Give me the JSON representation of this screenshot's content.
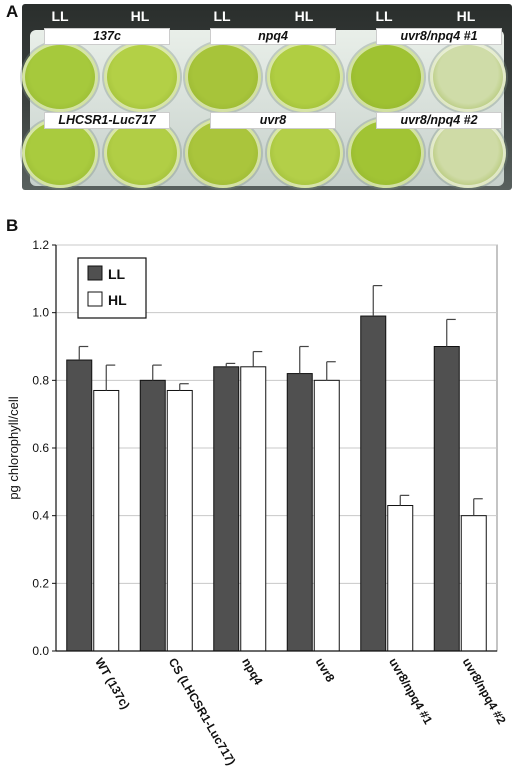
{
  "panels": {
    "a_letter": "A",
    "b_letter": "B"
  },
  "plate": {
    "columns": [
      "LL",
      "HL",
      "LL",
      "HL",
      "LL",
      "HL"
    ],
    "row1_labels": [
      "137c",
      "npq4",
      "uvr8/npq4 #1"
    ],
    "row2_labels": [
      "LHCSR1-Luc717",
      "uvr8",
      "uvr8/npq4 #2"
    ],
    "well_colors": {
      "row1": [
        "#a6c93c",
        "#b3d046",
        "#a7c43a",
        "#b0ce42",
        "#9fc232",
        "#cfdca8"
      ],
      "row2": [
        "#a9cb3e",
        "#b1ce45",
        "#aac53c",
        "#b3cf48",
        "#a1c434",
        "#cfdba6"
      ]
    }
  },
  "chart_data": {
    "type": "bar",
    "ylabel": "pg chlorophyll/cell",
    "xlabel": "",
    "ylim": [
      0.0,
      1.2
    ],
    "yticks": [
      "0.0",
      "0.2",
      "0.4",
      "0.6",
      "0.8",
      "1.0",
      "1.2"
    ],
    "grid": true,
    "legend_position": "top-left",
    "categories": [
      "WT (137c)",
      "CS (LHCSR1-Luc717)",
      "npq4",
      "uvr8",
      "uvr8/npq4 #1",
      "uvr8/npq4 #2"
    ],
    "series": [
      {
        "name": "LL",
        "color": "#505050",
        "values": [
          0.86,
          0.8,
          0.84,
          0.82,
          0.99,
          0.9
        ],
        "errors": [
          0.04,
          0.045,
          0.01,
          0.08,
          0.09,
          0.08
        ]
      },
      {
        "name": "HL",
        "color": "#ffffff",
        "values": [
          0.77,
          0.77,
          0.84,
          0.8,
          0.43,
          0.4
        ],
        "errors": [
          0.075,
          0.02,
          0.045,
          0.055,
          0.03,
          0.05
        ]
      }
    ]
  }
}
